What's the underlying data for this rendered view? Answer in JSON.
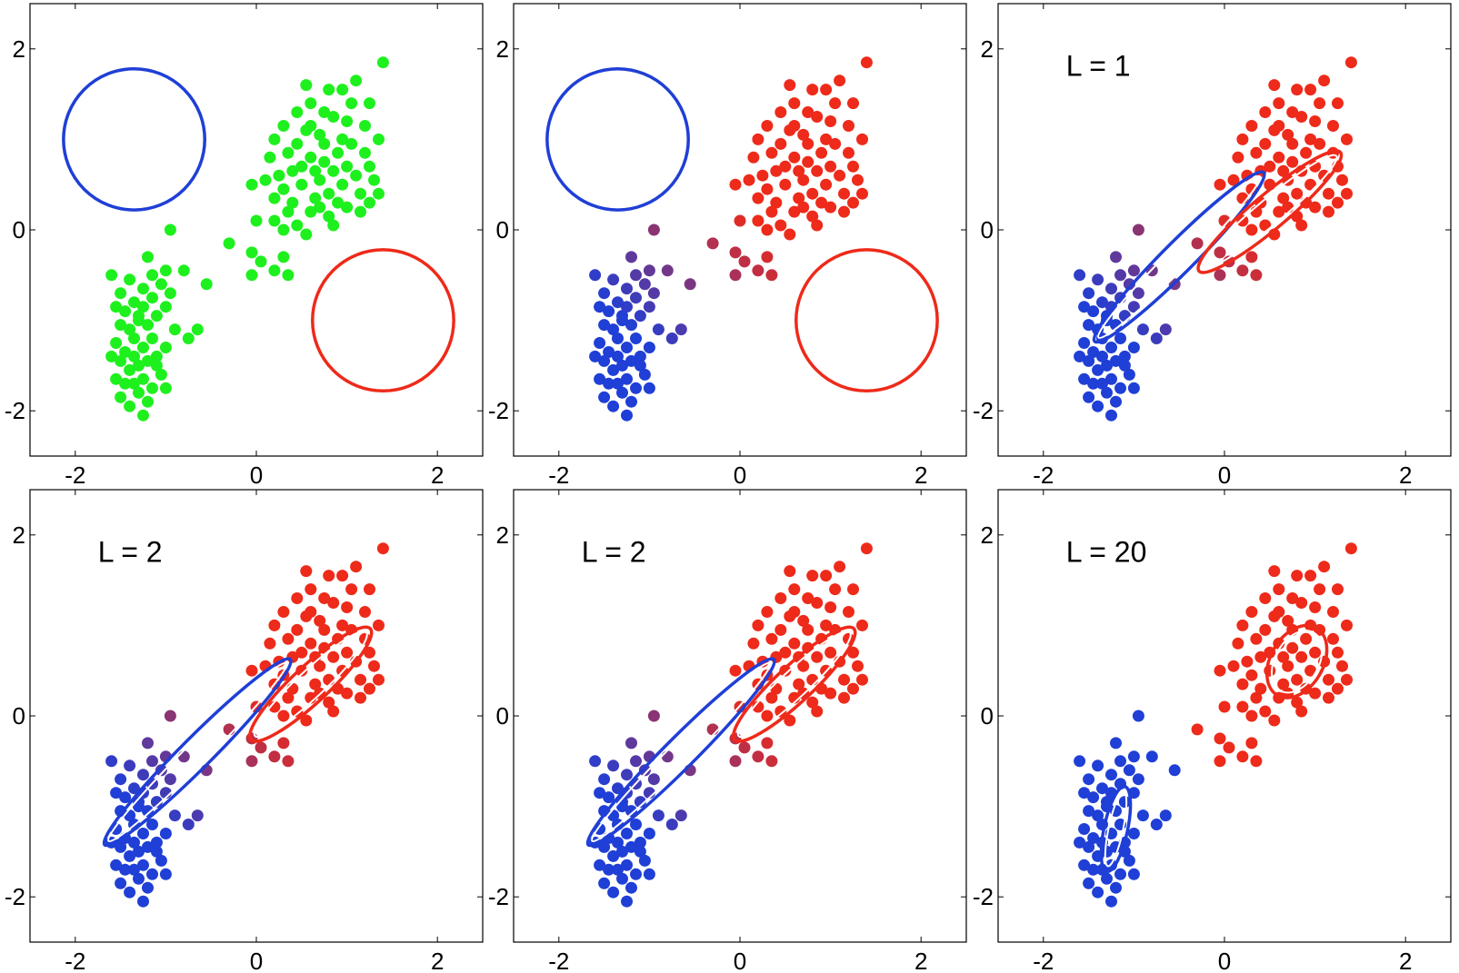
{
  "chart_data": [
    {
      "type": "scatter",
      "xlim": [
        -2.5,
        2.5
      ],
      "ylim": [
        -2.5,
        2.5
      ],
      "xticks": [
        "-2",
        "0",
        "2"
      ],
      "yticks": [
        "-2",
        "0",
        "2"
      ],
      "label": "",
      "point_coloring": "uniform-green",
      "components": [
        {
          "kind": "circle",
          "color": "#1f3fd6",
          "center": [
            -1.35,
            1.0
          ],
          "radius": 0.78
        },
        {
          "kind": "circle",
          "color": "#ee2a1a",
          "center": [
            1.4,
            -1.0
          ],
          "radius": 0.78
        }
      ]
    },
    {
      "type": "scatter",
      "xlim": [
        -2.5,
        2.5
      ],
      "ylim": [
        -2.5,
        2.5
      ],
      "xticks": [
        "-2",
        "0",
        "2"
      ],
      "yticks": [
        "-2",
        "0",
        "2"
      ],
      "label": "",
      "point_coloring": "responsibility",
      "components": [
        {
          "kind": "circle",
          "color": "#1f3fd6",
          "center": [
            -1.35,
            1.0
          ],
          "radius": 0.78
        },
        {
          "kind": "circle",
          "color": "#ee2a1a",
          "center": [
            1.4,
            -1.0
          ],
          "radius": 0.78
        }
      ]
    },
    {
      "type": "scatter",
      "xlim": [
        -2.5,
        2.5
      ],
      "ylim": [
        -2.5,
        2.5
      ],
      "xticks": [
        "-2",
        "0",
        "2"
      ],
      "yticks": [
        "-2",
        "0",
        "2"
      ],
      "label": "L = 1",
      "point_coloring": "responsibility",
      "components": [
        {
          "kind": "ellipse",
          "color": "#1f3fd6",
          "center": [
            -0.5,
            -0.3
          ],
          "rx": 1.32,
          "ry": 0.17,
          "angle": 45
        },
        {
          "kind": "ellipse",
          "color": "#ee2a1a",
          "center": [
            0.5,
            0.2
          ],
          "rx": 1.02,
          "ry": 0.19,
          "angle": 40
        }
      ]
    },
    {
      "type": "scatter",
      "xlim": [
        -2.5,
        2.5
      ],
      "ylim": [
        -2.5,
        2.5
      ],
      "xticks": [
        "-2",
        "0",
        "2"
      ],
      "yticks": [
        "-2",
        "0",
        "2"
      ],
      "label": "L = 2",
      "point_coloring": "responsibility",
      "components": [
        {
          "kind": "ellipse",
          "color": "#1f3fd6",
          "center": [
            -0.65,
            -0.4
          ],
          "rx": 1.45,
          "ry": 0.17,
          "angle": 45
        },
        {
          "kind": "ellipse",
          "color": "#ee2a1a",
          "center": [
            0.6,
            0.35
          ],
          "rx": 0.9,
          "ry": 0.2,
          "angle": 43
        }
      ]
    },
    {
      "type": "scatter",
      "xlim": [
        -2.5,
        2.5
      ],
      "ylim": [
        -2.5,
        2.5
      ],
      "xticks": [
        "-2",
        "0",
        "2"
      ],
      "yticks": [
        "-2",
        "0",
        "2"
      ],
      "label": "L = 2",
      "point_coloring": "responsibility",
      "components": [
        {
          "kind": "ellipse",
          "color": "#1f3fd6",
          "center": [
            -0.65,
            -0.4
          ],
          "rx": 1.45,
          "ry": 0.17,
          "angle": 45
        },
        {
          "kind": "ellipse",
          "color": "#ee2a1a",
          "center": [
            0.6,
            0.35
          ],
          "rx": 0.9,
          "ry": 0.2,
          "angle": 43
        }
      ]
    },
    {
      "type": "scatter",
      "xlim": [
        -2.5,
        2.5
      ],
      "ylim": [
        -2.5,
        2.5
      ],
      "xticks": [
        "-2",
        "0",
        "2"
      ],
      "yticks": [
        "-2",
        "0",
        "2"
      ],
      "label": "L = 20",
      "point_coloring": "hard",
      "components": [
        {
          "kind": "ellipse",
          "color": "#1f3fd6",
          "center": [
            -1.2,
            -1.25
          ],
          "rx": 0.48,
          "ry": 0.13,
          "angle": 78
        },
        {
          "kind": "ellipse",
          "color": "#ee2a1a",
          "center": [
            0.8,
            0.6
          ],
          "rx": 0.43,
          "ry": 0.29,
          "angle": 60
        }
      ]
    }
  ],
  "dataset": {
    "color_blue": "#1f3fd6",
    "color_red": "#ee2a1a",
    "color_green": "#1ef01e",
    "points": [
      [
        -1.25,
        -2.05
      ],
      [
        -1.4,
        -1.95
      ],
      [
        -1.2,
        -1.9
      ],
      [
        -1.5,
        -1.85
      ],
      [
        -1.3,
        -1.8
      ],
      [
        -1.15,
        -1.75
      ],
      [
        -1.45,
        -1.7
      ],
      [
        -1.35,
        -1.7
      ],
      [
        -1.55,
        -1.65
      ],
      [
        -1.25,
        -1.65
      ],
      [
        -1.0,
        -1.75
      ],
      [
        -1.05,
        -1.6
      ],
      [
        -1.4,
        -1.55
      ],
      [
        -1.3,
        -1.5
      ],
      [
        -1.5,
        -1.45
      ],
      [
        -1.2,
        -1.45
      ],
      [
        -1.35,
        -1.4
      ],
      [
        -1.6,
        -1.4
      ],
      [
        -1.1,
        -1.4
      ],
      [
        -1.45,
        -1.35
      ],
      [
        -1.25,
        -1.3
      ],
      [
        -1.0,
        -1.3
      ],
      [
        -1.55,
        -1.25
      ],
      [
        -1.35,
        -1.2
      ],
      [
        -1.15,
        -1.2
      ],
      [
        -1.4,
        -1.1
      ],
      [
        -1.2,
        -1.05
      ],
      [
        -1.5,
        -1.05
      ],
      [
        -0.9,
        -1.1
      ],
      [
        -0.75,
        -1.2
      ],
      [
        -1.3,
        -0.95
      ],
      [
        -1.1,
        -0.95
      ],
      [
        -1.45,
        -0.9
      ],
      [
        -1.25,
        -0.85
      ],
      [
        -1.55,
        -0.85
      ],
      [
        -1.0,
        -0.85
      ],
      [
        -1.35,
        -0.8
      ],
      [
        -1.15,
        -0.75
      ],
      [
        -0.95,
        -0.7
      ],
      [
        -1.5,
        -0.7
      ],
      [
        -1.25,
        -0.65
      ],
      [
        -1.05,
        -0.6
      ],
      [
        -1.4,
        -0.55
      ],
      [
        -1.6,
        -0.5
      ],
      [
        -1.15,
        -0.5
      ],
      [
        -0.8,
        -0.45
      ],
      [
        -1.0,
        -0.45
      ],
      [
        -0.55,
        -0.6
      ],
      [
        -1.2,
        -0.3
      ],
      [
        -0.95,
        0.0
      ],
      [
        -1.3,
        -1.0
      ],
      [
        -1.1,
        -1.5
      ],
      [
        -0.65,
        -1.1
      ],
      [
        -0.3,
        -0.15
      ],
      [
        -0.05,
        -0.25
      ],
      [
        0.05,
        -0.35
      ],
      [
        -0.05,
        -0.5
      ],
      [
        0.2,
        -0.45
      ],
      [
        0.3,
        0.0
      ],
      [
        0.0,
        0.1
      ],
      [
        0.2,
        0.1
      ],
      [
        0.35,
        -0.5
      ],
      [
        0.3,
        -0.3
      ],
      [
        -0.05,
        0.5
      ],
      [
        0.1,
        0.55
      ],
      [
        0.2,
        0.35
      ],
      [
        0.35,
        0.2
      ],
      [
        0.45,
        0.05
      ],
      [
        0.55,
        -0.05
      ],
      [
        0.15,
        0.8
      ],
      [
        0.3,
        1.15
      ],
      [
        0.45,
        0.95
      ],
      [
        0.55,
        1.1
      ],
      [
        0.6,
        0.8
      ],
      [
        0.4,
        0.65
      ],
      [
        0.5,
        0.5
      ],
      [
        0.7,
        0.55
      ],
      [
        0.65,
        0.35
      ],
      [
        0.8,
        0.4
      ],
      [
        0.75,
        0.75
      ],
      [
        0.85,
        0.65
      ],
      [
        0.9,
        0.85
      ],
      [
        1.0,
        0.7
      ],
      [
        0.95,
        0.5
      ],
      [
        1.1,
        0.6
      ],
      [
        1.05,
        0.95
      ],
      [
        1.2,
        0.85
      ],
      [
        1.15,
        0.4
      ],
      [
        1.3,
        0.55
      ],
      [
        1.25,
        0.7
      ],
      [
        1.35,
        1.0
      ],
      [
        1.0,
        1.2
      ],
      [
        1.2,
        1.15
      ],
      [
        0.85,
        1.25
      ],
      [
        0.7,
        1.05
      ],
      [
        0.6,
        1.4
      ],
      [
        0.8,
        1.55
      ],
      [
        0.55,
        1.6
      ],
      [
        1.1,
        1.65
      ],
      [
        0.95,
        1.55
      ],
      [
        1.25,
        1.4
      ],
      [
        1.4,
        1.85
      ],
      [
        0.4,
        0.3
      ],
      [
        0.6,
        0.2
      ],
      [
        0.8,
        0.15
      ],
      [
        1.0,
        0.25
      ],
      [
        0.35,
        0.85
      ],
      [
        0.25,
        0.6
      ],
      [
        0.65,
        0.65
      ],
      [
        0.9,
        0.3
      ],
      [
        1.15,
        0.2
      ],
      [
        1.35,
        0.4
      ],
      [
        0.75,
        0.95
      ],
      [
        0.45,
        1.3
      ],
      [
        0.2,
        1.0
      ],
      [
        1.05,
        1.4
      ],
      [
        0.5,
        0.7
      ],
      [
        0.7,
        0.25
      ],
      [
        0.6,
        1.15
      ],
      [
        0.85,
        0.05
      ],
      [
        0.95,
        1.0
      ],
      [
        1.25,
        0.3
      ],
      [
        0.3,
        0.45
      ],
      [
        0.75,
        1.3
      ]
    ]
  }
}
